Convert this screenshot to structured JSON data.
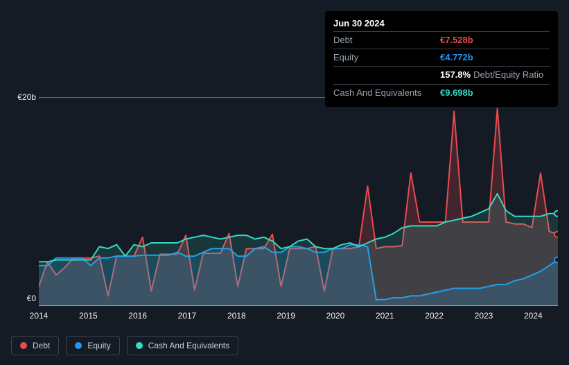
{
  "chart": {
    "type": "area",
    "background_color": "#151b24",
    "plot_background_tint": "rgba(255,255,255,0.03)",
    "axis_color": "#9aa4af",
    "text_color": "#eef2f5",
    "muted_text_color": "#9aa4af",
    "label_fontsize": 12,
    "ylim": [
      0,
      22
    ],
    "y_ticks": [
      {
        "value": 0,
        "label": "€0"
      },
      {
        "value": 20,
        "label": "€20b"
      }
    ],
    "x_ticks": [
      "2014",
      "2015",
      "2016",
      "2017",
      "2018",
      "2019",
      "2020",
      "2021",
      "2022",
      "2023",
      "2024"
    ],
    "series": [
      {
        "key": "debt",
        "label": "Debt",
        "color": "#e84b50",
        "fill_opacity": 0.22,
        "stroke_width": 2,
        "data": [
          2.0,
          4.6,
          3.2,
          4.0,
          5.0,
          5.0,
          5.0,
          5.2,
          1.0,
          5.2,
          5.2,
          5.2,
          7.2,
          1.5,
          5.4,
          5.4,
          5.4,
          7.4,
          1.6,
          5.5,
          5.5,
          5.5,
          7.6,
          2.0,
          6.0,
          6.0,
          6.0,
          7.5,
          2.0,
          6.0,
          6.0,
          6.0,
          6.2,
          1.5,
          6.0,
          6.0,
          6.0,
          6.2,
          12.6,
          6.0,
          6.2,
          6.2,
          6.3,
          14.0,
          8.8,
          8.8,
          8.8,
          8.8,
          20.5,
          8.8,
          8.8,
          8.8,
          8.8,
          20.8,
          8.8,
          8.6,
          8.6,
          8.2,
          14.0,
          7.8,
          7.5
        ]
      },
      {
        "key": "equity",
        "label": "Equity",
        "color": "#2196f3",
        "fill_opacity": 0.2,
        "stroke_width": 2,
        "data": [
          4.2,
          4.2,
          5.0,
          5.0,
          5.0,
          5.0,
          4.2,
          5.0,
          5.0,
          5.2,
          5.2,
          5.2,
          5.3,
          5.3,
          5.3,
          5.3,
          5.6,
          5.2,
          5.2,
          5.6,
          6.0,
          6.0,
          6.0,
          5.2,
          5.2,
          6.0,
          6.2,
          5.6,
          5.6,
          6.2,
          6.2,
          6.0,
          5.6,
          5.6,
          6.0,
          6.0,
          6.4,
          6.4,
          6.2,
          0.6,
          0.6,
          0.8,
          0.8,
          1.0,
          1.0,
          1.2,
          1.4,
          1.6,
          1.8,
          1.8,
          1.8,
          1.8,
          2.0,
          2.2,
          2.2,
          2.6,
          2.8,
          3.2,
          3.6,
          4.2,
          4.8
        ]
      },
      {
        "key": "cash",
        "label": "Cash And Equivalents",
        "color": "#35dbc4",
        "fill_opacity": 0.15,
        "stroke_width": 2,
        "data": [
          4.6,
          4.6,
          4.8,
          4.8,
          4.8,
          4.8,
          4.8,
          6.2,
          6.0,
          6.4,
          5.2,
          6.4,
          6.2,
          6.6,
          6.6,
          6.6,
          6.6,
          7.0,
          7.2,
          7.4,
          7.2,
          7.0,
          7.2,
          7.4,
          7.4,
          7.0,
          7.2,
          6.8,
          6.0,
          6.2,
          6.8,
          7.0,
          6.2,
          6.0,
          6.0,
          6.4,
          6.6,
          6.2,
          6.6,
          7.0,
          7.2,
          7.6,
          8.2,
          8.4,
          8.4,
          8.4,
          8.4,
          8.8,
          9.0,
          9.2,
          9.4,
          9.8,
          10.2,
          11.8,
          10.0,
          9.4,
          9.4,
          9.4,
          9.4,
          9.7,
          9.7
        ]
      }
    ]
  },
  "tooltip": {
    "title": "Jun 30 2024",
    "rows": [
      {
        "label": "Debt",
        "value": "€7.528b",
        "color": "#e84b50"
      },
      {
        "label": "Equity",
        "value": "€4.772b",
        "color": "#2196f3"
      },
      {
        "label": "",
        "value": "157.8%",
        "trail": "Debt/Equity Ratio",
        "color": "#ffffff"
      },
      {
        "label": "Cash And Equivalents",
        "value": "€9.698b",
        "color": "#35dbc4"
      }
    ]
  },
  "legend": {
    "items": [
      {
        "key": "debt",
        "label": "Debt",
        "color": "#e84b50"
      },
      {
        "key": "equity",
        "label": "Equity",
        "color": "#2196f3"
      },
      {
        "key": "cash",
        "label": "Cash And Equivalents",
        "color": "#35dbc4"
      }
    ],
    "border_color": "#3a4452"
  }
}
